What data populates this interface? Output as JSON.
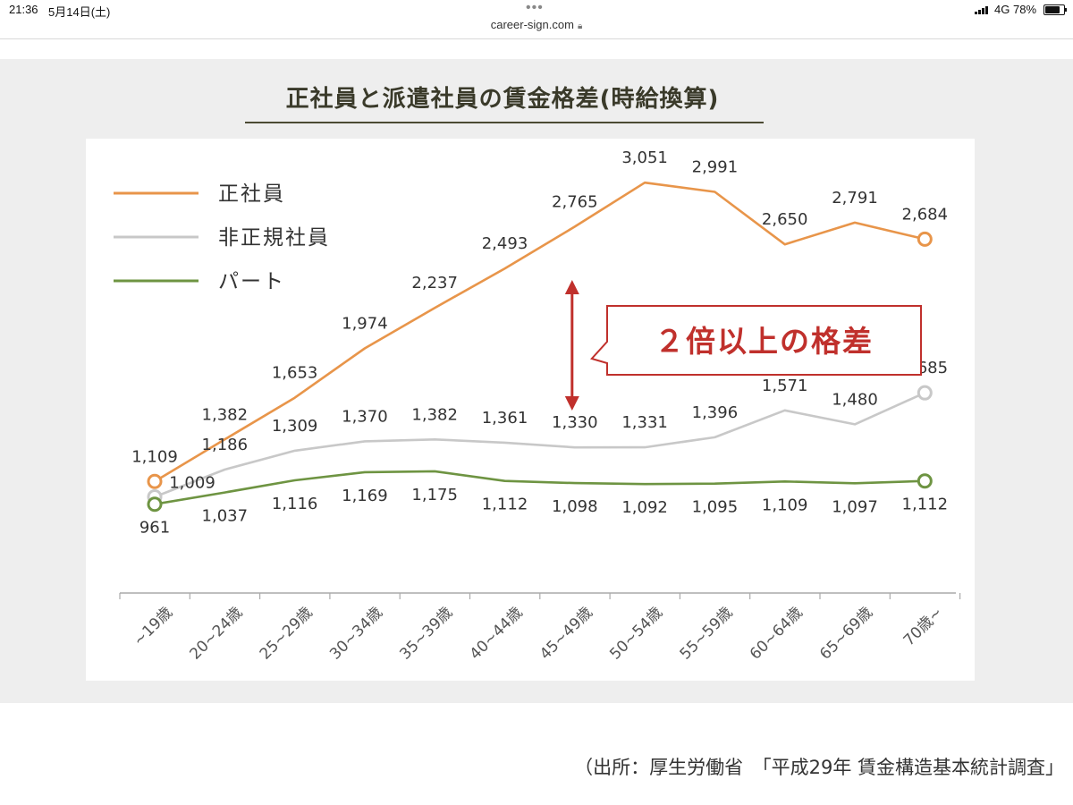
{
  "status_bar": {
    "time": "21:36",
    "date": "5月14日(土)",
    "network": "4G",
    "battery": "78%",
    "battery_level": 0.78
  },
  "browser": {
    "url": "career-sign.com",
    "lock_icon": "lock-icon"
  },
  "source_note": "（出所：厚生労働省　「平成29年 賃金構造基本統計調査」",
  "colors": {
    "regular": "#e8954a",
    "nonregular": "#c8c8c8",
    "part": "#6e9442",
    "callout": "#c0302c"
  },
  "chart_data": {
    "type": "line",
    "title": "正社員と派遣社員の賃金格差(時給換算)",
    "xlabel": "",
    "ylabel": "",
    "categories": [
      "~19歳",
      "20~24歳",
      "25~29歳",
      "30~34歳",
      "35~39歳",
      "40~44歳",
      "45~49歳",
      "50~54歳",
      "55~59歳",
      "60~64歳",
      "65~69歳",
      "70歳~"
    ],
    "category_labels": [
      "~19歳",
      "20~24歳",
      "25~29歳",
      "30~34歳",
      "35~39歳",
      "40~44歳",
      "45~49歳",
      "50~54歳",
      "55~59歳",
      "60~64歳",
      "65~69歳",
      "70歳~"
    ],
    "series": [
      {
        "name": "正社員",
        "values": [
          1109,
          1382,
          1653,
          1974,
          2237,
          2493,
          2765,
          3051,
          2991,
          2650,
          2791,
          2684
        ],
        "labels": [
          "1,109",
          "1,382",
          "1,653",
          "1,974",
          "2,237",
          "2,493",
          "2,765",
          "3,051",
          "2,991",
          "2,650",
          "2,791",
          "2,684"
        ]
      },
      {
        "name": "非正規社員",
        "values": [
          1009,
          1186,
          1309,
          1370,
          1382,
          1361,
          1330,
          1331,
          1396,
          1571,
          1480,
          1685
        ],
        "labels": [
          "1,009",
          "1,186",
          "1,309",
          "1,370",
          "1,382",
          "1,361",
          "1,330",
          "1,331",
          "1,396",
          "1,571",
          "1,480",
          "1,685"
        ]
      },
      {
        "name": "パート",
        "values": [
          961,
          1037,
          1116,
          1169,
          1175,
          1112,
          1098,
          1092,
          1095,
          1109,
          1097,
          1112
        ],
        "labels": [
          "961",
          "1,037",
          "1,116",
          "1,169",
          "1,175",
          "1,112",
          "1,098",
          "1,092",
          "1,095",
          "1,109",
          "1,097",
          "1,112"
        ]
      }
    ],
    "annotation": "２倍以上の格差",
    "annotation_category": "45~49歳",
    "legend_position": "top-left",
    "grid": false
  }
}
